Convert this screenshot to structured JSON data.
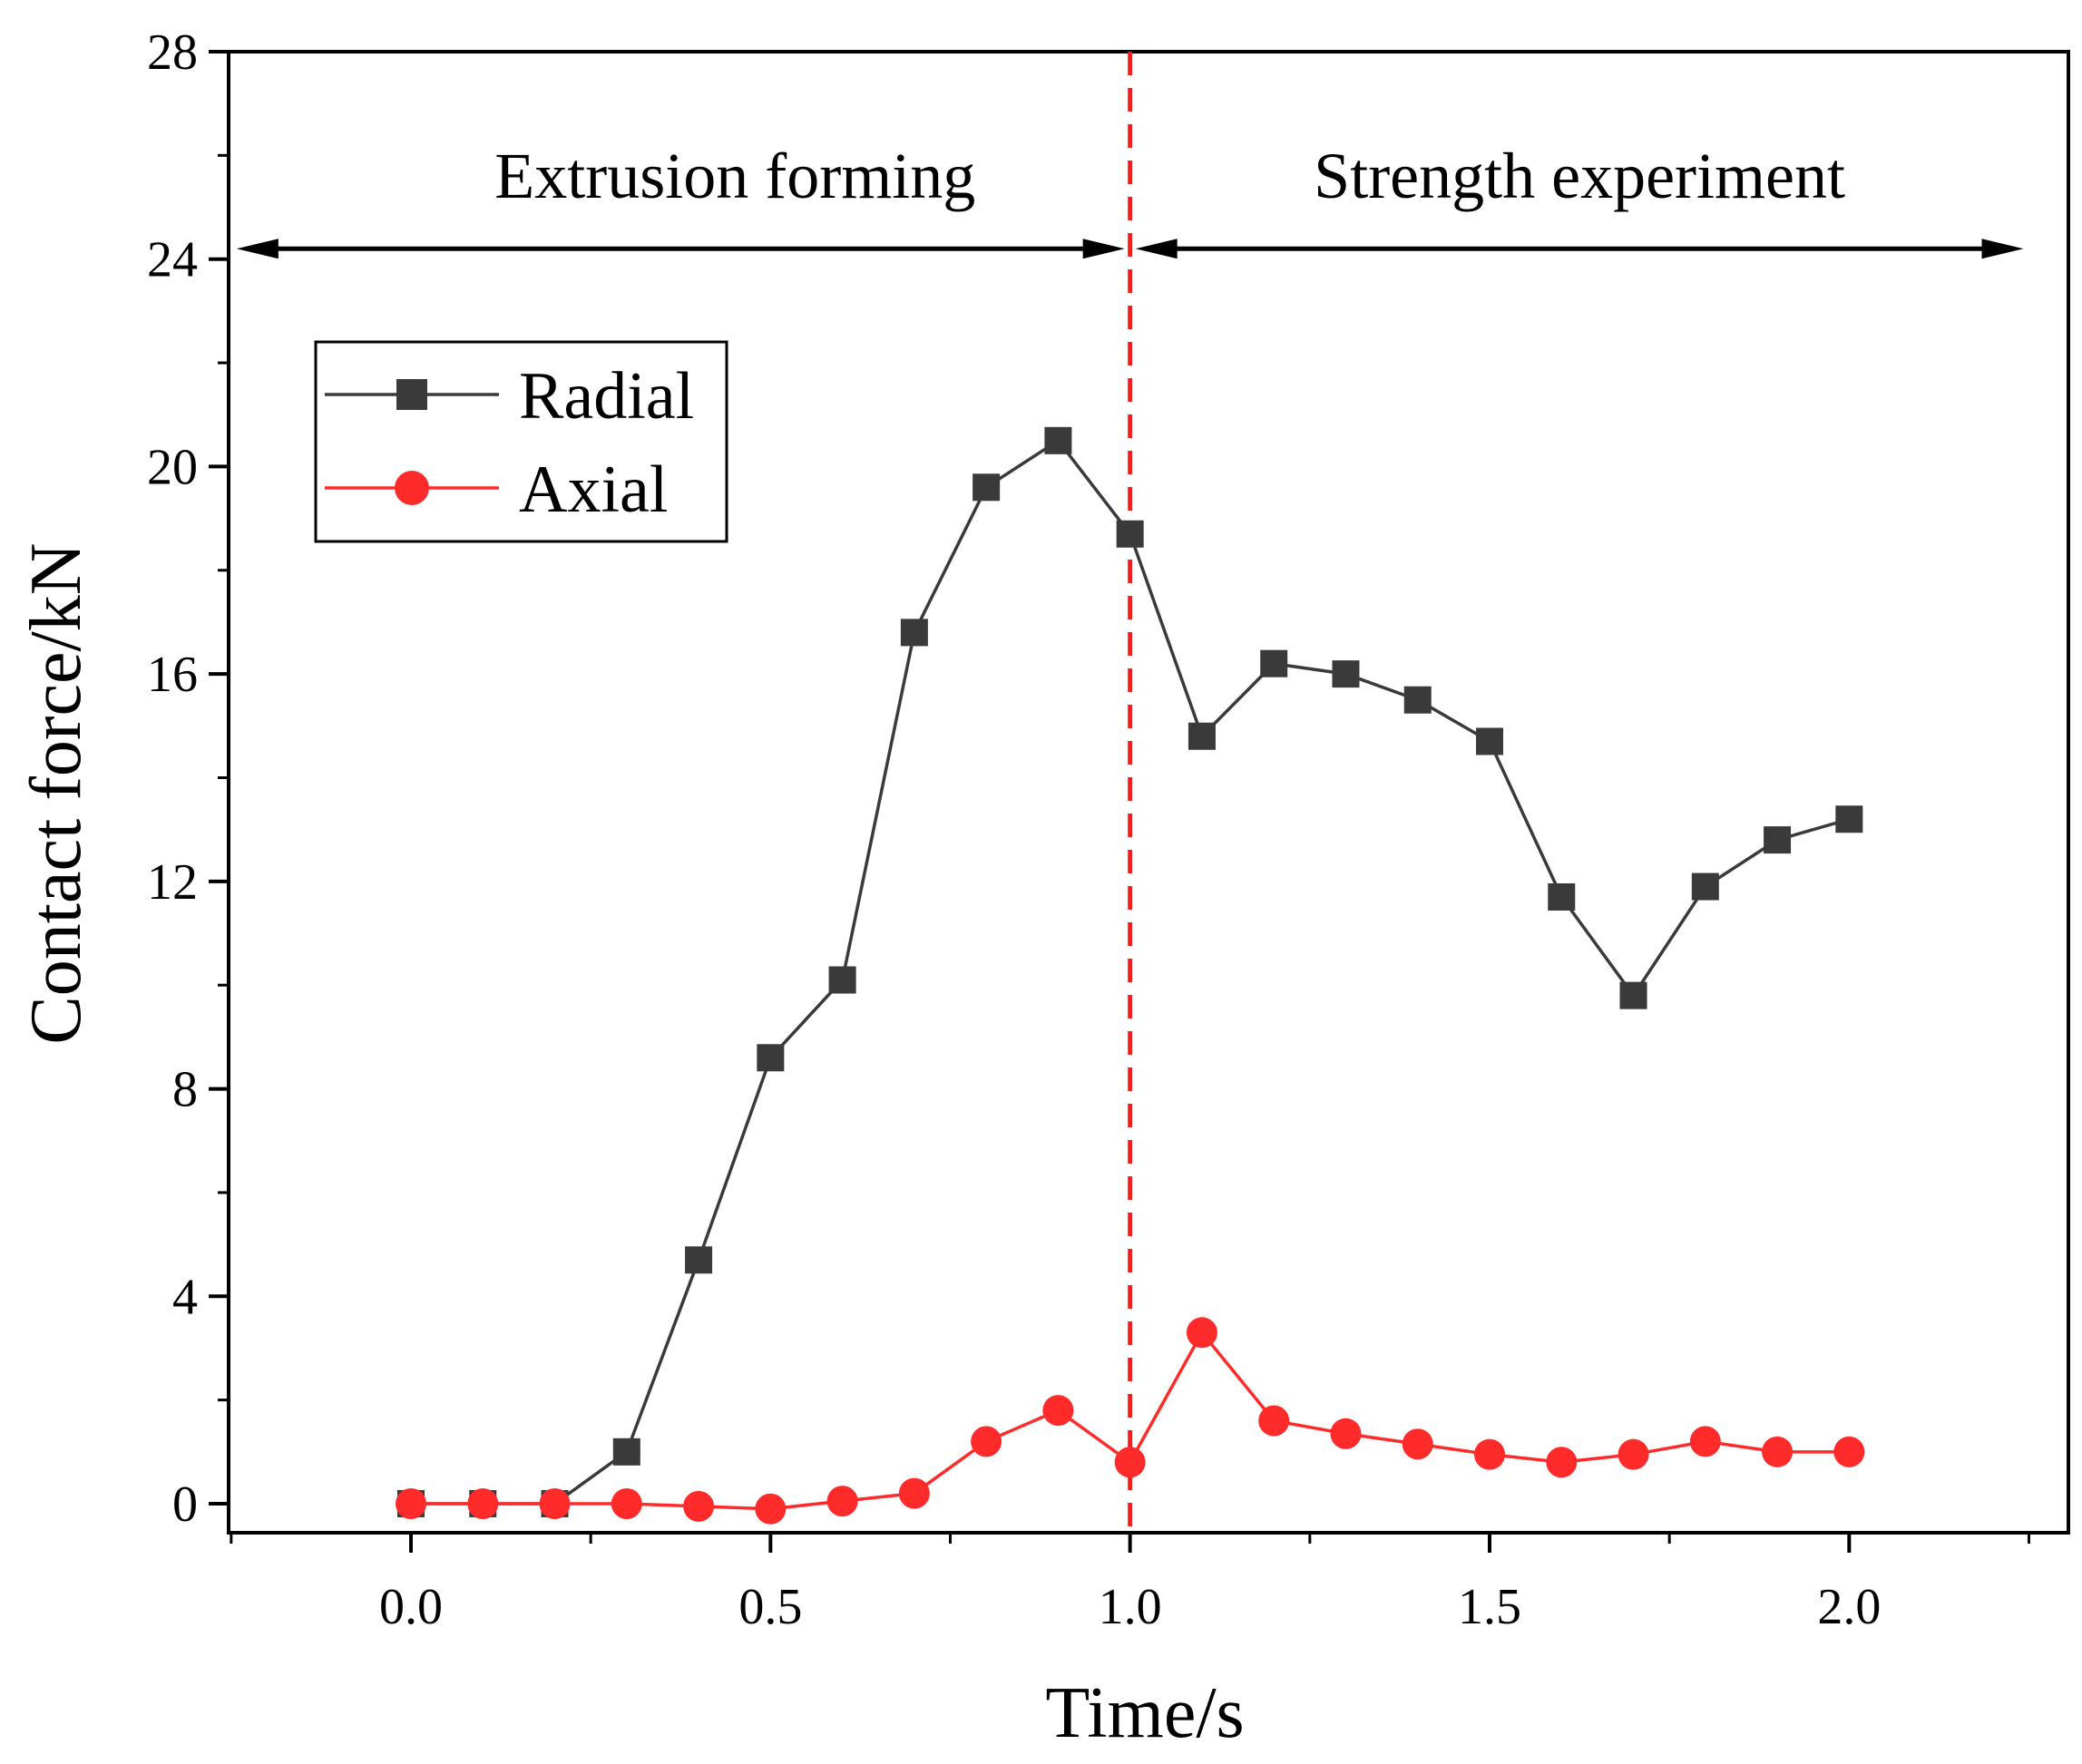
{
  "chart_data": {
    "type": "line",
    "title": "",
    "xlabel": "Time/s",
    "ylabel": "Contact force/kN",
    "xlim": [
      -0.25,
      2.25
    ],
    "ylim": [
      -0.5,
      28
    ],
    "xticks": [
      0.0,
      0.5,
      1.0,
      1.5,
      2.0
    ],
    "xtick_labels": [
      "0.0",
      "0.5",
      "1.0",
      "1.5",
      "2.0"
    ],
    "yticks": [
      0,
      4,
      8,
      12,
      16,
      20,
      24,
      28
    ],
    "ytick_labels": [
      "0",
      "4",
      "8",
      "12",
      "16",
      "20",
      "24",
      "28"
    ],
    "grid": false,
    "legend_position": "top-left",
    "x": [
      0.0,
      0.1,
      0.2,
      0.3,
      0.4,
      0.5,
      0.6,
      0.7,
      0.8,
      0.9,
      1.0,
      1.1,
      1.2,
      1.3,
      1.4,
      1.5,
      1.6,
      1.7,
      1.8,
      1.9,
      2.0
    ],
    "series": [
      {
        "name": "Radial",
        "color": "#3a3a3a",
        "marker": "square",
        "values": [
          0.0,
          0.0,
          0.0,
          1.0,
          4.7,
          8.6,
          10.1,
          16.8,
          19.6,
          20.5,
          18.7,
          14.8,
          16.2,
          16.0,
          15.5,
          14.7,
          11.7,
          9.8,
          11.9,
          12.8,
          13.2
        ]
      },
      {
        "name": "Axial",
        "color": "#ff2a2a",
        "marker": "circle",
        "values": [
          0.0,
          0.0,
          0.0,
          0.0,
          -0.05,
          -0.1,
          0.05,
          0.2,
          1.2,
          1.8,
          0.8,
          3.3,
          1.6,
          1.35,
          1.15,
          0.95,
          0.8,
          0.95,
          1.2,
          1.0,
          1.0
        ]
      }
    ],
    "annotations": {
      "divider_x": 1.0,
      "divider_color": "#ff1a1a",
      "phase_arrow_y": 24.2,
      "phases": [
        {
          "label": "Extrusion forming",
          "x_start": -0.25,
          "x_end": 1.0
        },
        {
          "label": "Strength experiment",
          "x_start": 1.0,
          "x_end": 2.25
        }
      ]
    }
  }
}
